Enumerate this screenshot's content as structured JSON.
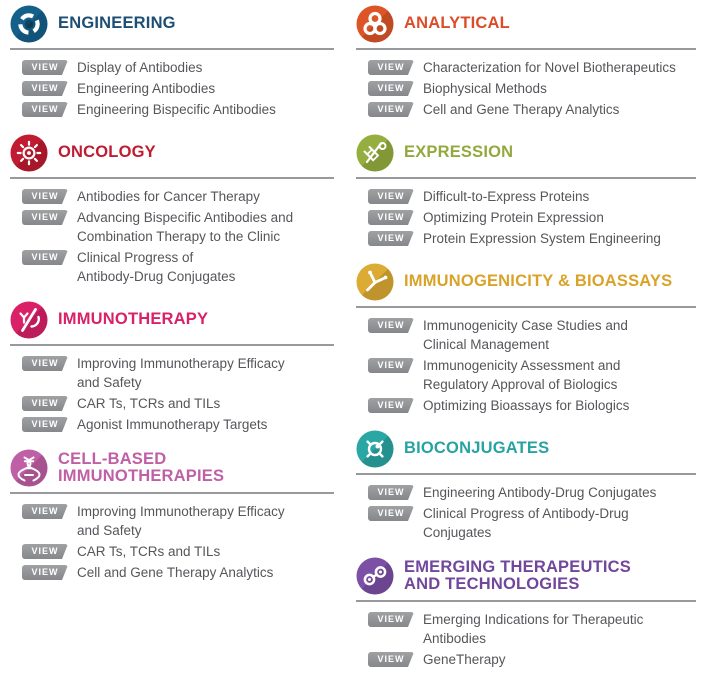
{
  "view_label": "VIEW",
  "rule_color": "#97999c",
  "item_text_color": "#55565a",
  "view_button_color": "#8d8f91",
  "sections": [
    {
      "id": "engineering",
      "title": "ENGINEERING",
      "accent": "#1d4e74",
      "icon_color": "#14608b",
      "icon": "rotating-arrows-icon",
      "column": "left",
      "items": [
        "Display of Antibodies",
        "Engineering Antibodies",
        "Engineering Bispecific Antibodies"
      ]
    },
    {
      "id": "oncology",
      "title": "ONCOLOGY",
      "accent": "#c01b31",
      "icon_color": "#c01b31",
      "icon": "cancer-cell-icon",
      "column": "left",
      "items": [
        "Antibodies for Cancer Therapy",
        "Advancing Bispecific Antibodies and\nCombination Therapy to the Clinic",
        "Clinical Progress of\nAntibody-Drug Conjugates"
      ]
    },
    {
      "id": "immunotherapy",
      "title": "IMMUNOTHERAPY",
      "accent": "#da2168",
      "icon_color": "#da2168",
      "icon": "antibody-cell-icon",
      "column": "left",
      "items": [
        "Improving Immunotherapy Efficacy\nand Safety",
        "CAR Ts, TCRs and TILs",
        "Agonist Immunotherapy Targets"
      ]
    },
    {
      "id": "cell-based-immunotherapies",
      "title": "CELL-BASED\nIMMUNOTHERAPIES",
      "accent": "#bf60a6",
      "icon_color": "#bf60a6",
      "icon": "dna-helix-icon",
      "column": "left",
      "items": [
        "Improving Immunotherapy Efficacy\nand Safety",
        "CAR Ts, TCRs and TILs",
        "Cell and Gene Therapy Analytics"
      ]
    },
    {
      "id": "analytical",
      "title": "ANALYTICAL",
      "accent": "#dc4c28",
      "icon_color": "#dd5527",
      "icon": "molecule-cluster-icon",
      "column": "right",
      "items": [
        "Characterization for Novel Biotherapeutics",
        "Biophysical Methods",
        "Cell and Gene Therapy Analytics"
      ]
    },
    {
      "id": "expression",
      "title": "EXPRESSION",
      "accent": "#93a83d",
      "icon_color": "#96ae3f",
      "icon": "dna-percent-icon",
      "column": "right",
      "items": [
        "Difficult-to-Express Proteins",
        "Optimizing Protein Expression",
        "Protein Expression System Engineering"
      ]
    },
    {
      "id": "immunogenicity-bioassays",
      "title": "IMMUNOGENICITY & BIOASSAYS",
      "accent": "#d9a32a",
      "icon_color": "#dcab34",
      "icon": "antibody-icon",
      "column": "right",
      "items": [
        "Immunogenicity Case Studies and\nClinical Management",
        "Immunogenicity Assessment and\nRegulatory Approval of Biologics",
        "Optimizing Bioassays for Biologics"
      ]
    },
    {
      "id": "bioconjugates",
      "title": "BIOCONJUGATES",
      "accent": "#27a4a1",
      "icon_color": "#2aa7a4",
      "icon": "conjugate-molecule-icon",
      "column": "right",
      "items": [
        "Engineering Antibody-Drug Conjugates",
        "Clinical Progress of Antibody-Drug\nConjugates"
      ]
    },
    {
      "id": "emerging-therapeutics-technologies",
      "title": "EMERGING THERAPEUTICS\nAND TECHNOLOGIES",
      "accent": "#71479c",
      "icon_color": "#7b50a5",
      "icon": "chain-links-icon",
      "column": "right",
      "items": [
        "Emerging Indications for Therapeutic\nAntibodies",
        "GeneTherapy"
      ]
    }
  ]
}
